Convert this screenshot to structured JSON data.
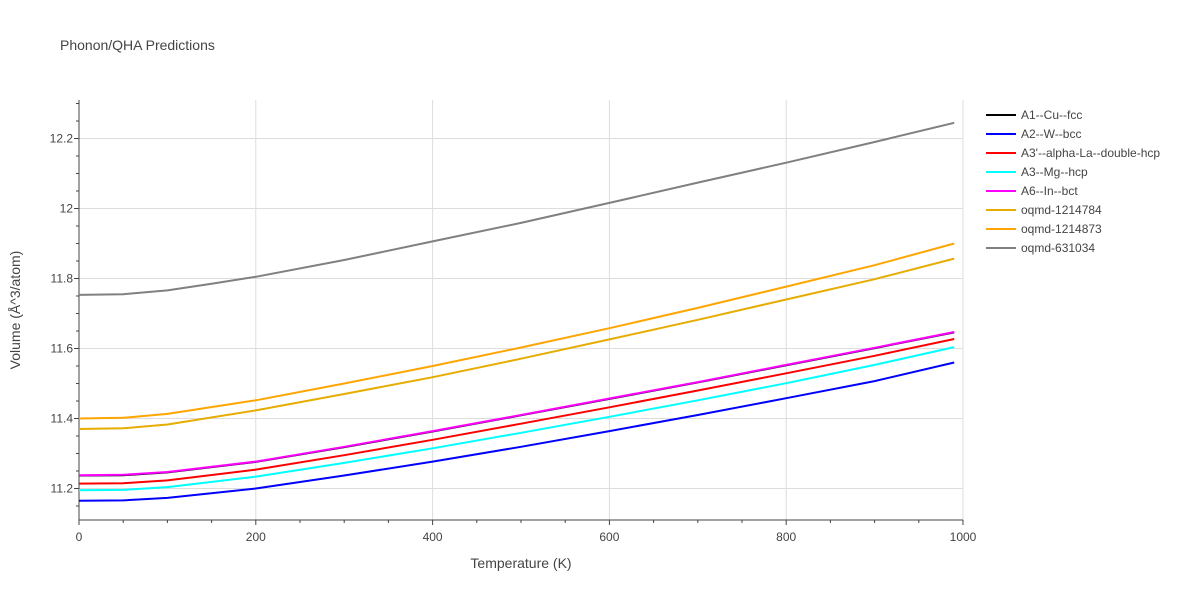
{
  "chart_data": {
    "type": "line",
    "title": "Phonon/QHA Predictions",
    "xlabel": "Temperature (K)",
    "ylabel": "Volume (Å^3/atom)",
    "xlim": [
      0,
      1000
    ],
    "ylim": [
      11.11,
      12.31
    ],
    "xticks": [
      0,
      200,
      400,
      600,
      800,
      1000
    ],
    "xtick_labels": [
      "0",
      "200",
      "400",
      "600",
      "800",
      "1000"
    ],
    "yticks": [
      11.2,
      11.4,
      11.6,
      11.8,
      12.0,
      12.2
    ],
    "ytick_labels": [
      "11.2",
      "11.4",
      "11.6",
      "11.8",
      "12",
      "12.2"
    ],
    "grid": true,
    "legend_position": "right",
    "series": [
      {
        "name": "A1--Cu--fcc",
        "color": "#000000",
        "x": [
          0,
          50,
          100,
          200,
          300,
          400,
          500,
          600,
          700,
          800,
          900,
          990
        ],
        "y": [
          11.237,
          11.238,
          11.246,
          11.276,
          11.318,
          11.363,
          11.409,
          11.456,
          11.503,
          11.552,
          11.601,
          11.646
        ]
      },
      {
        "name": "A2--W--bcc",
        "color": "#0000ff",
        "x": [
          0,
          50,
          100,
          200,
          300,
          400,
          500,
          600,
          700,
          800,
          900,
          990
        ],
        "y": [
          11.165,
          11.166,
          11.173,
          11.2,
          11.237,
          11.277,
          11.319,
          11.364,
          11.41,
          11.458,
          11.507,
          11.56
        ]
      },
      {
        "name": "A3'--alpha-La--double-hcp",
        "color": "#ff0000",
        "x": [
          0,
          50,
          100,
          200,
          300,
          400,
          500,
          600,
          700,
          800,
          900,
          990
        ],
        "y": [
          11.214,
          11.215,
          11.223,
          11.254,
          11.295,
          11.339,
          11.385,
          11.432,
          11.48,
          11.529,
          11.579,
          11.627
        ]
      },
      {
        "name": "A3--Mg--hcp",
        "color": "#00ffff",
        "x": [
          0,
          50,
          100,
          200,
          300,
          400,
          500,
          600,
          700,
          800,
          900,
          990
        ],
        "y": [
          11.195,
          11.196,
          11.204,
          11.234,
          11.273,
          11.315,
          11.359,
          11.405,
          11.452,
          11.501,
          11.553,
          11.604
        ]
      },
      {
        "name": "A6--In--bct",
        "color": "#ff00ff",
        "x": [
          0,
          50,
          100,
          200,
          300,
          400,
          500,
          600,
          700,
          800,
          900,
          990
        ],
        "y": [
          11.238,
          11.239,
          11.247,
          11.277,
          11.319,
          11.364,
          11.41,
          11.457,
          11.504,
          11.553,
          11.602,
          11.647
        ]
      },
      {
        "name": "oqmd-1214784",
        "color": "#e6ac00",
        "x": [
          0,
          50,
          100,
          200,
          300,
          400,
          500,
          600,
          700,
          800,
          900,
          990
        ],
        "y": [
          11.37,
          11.372,
          11.383,
          11.423,
          11.47,
          11.518,
          11.571,
          11.626,
          11.682,
          11.74,
          11.798,
          11.857
        ]
      },
      {
        "name": "oqmd-1214873",
        "color": "#ffa500",
        "x": [
          0,
          50,
          100,
          200,
          300,
          400,
          500,
          600,
          700,
          800,
          900,
          990
        ],
        "y": [
          11.4,
          11.402,
          11.413,
          11.452,
          11.5,
          11.55,
          11.603,
          11.658,
          11.716,
          11.777,
          11.838,
          11.9
        ]
      },
      {
        "name": "oqmd-631034",
        "color": "#808080",
        "x": [
          0,
          50,
          100,
          150,
          200,
          300,
          400,
          500,
          600,
          700,
          800,
          900,
          990
        ],
        "y": [
          11.753,
          11.755,
          11.766,
          11.785,
          11.805,
          11.853,
          11.906,
          11.959,
          12.016,
          12.074,
          12.131,
          12.19,
          12.245
        ]
      }
    ]
  }
}
